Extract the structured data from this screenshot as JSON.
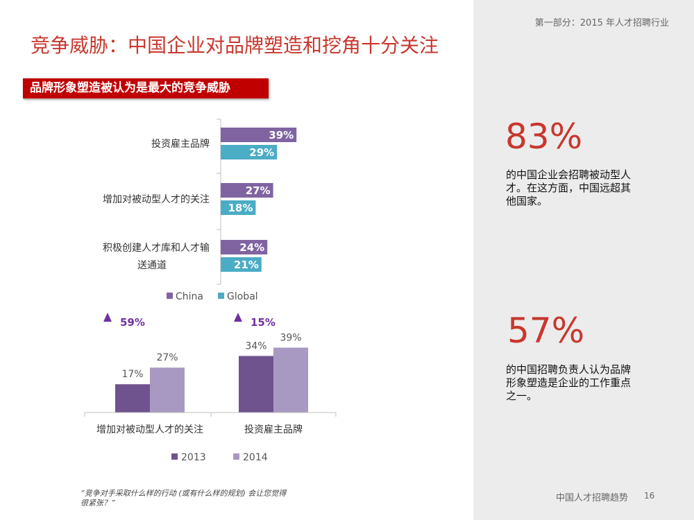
{
  "header": {
    "section_label": "第一部分：2015 年人才招聘行业",
    "title": "竞争威胁：中国企业对品牌塑造和挖角十分关注",
    "subtitle": "品牌形象塑造被认为是最大的竞争威胁"
  },
  "colors": {
    "title_red": "#c8372d",
    "subtitle_bg": "#c00000",
    "china_purple": "#8064a2",
    "global_teal": "#4bacc6",
    "y2013": "#6f538f",
    "y2014": "#a899c2",
    "increase_purple": "#7030a0"
  },
  "chart_data": [
    {
      "type": "bar",
      "orientation": "horizontal",
      "categories": [
        "投资雇主品牌",
        "增加对被动型人才的关注",
        "积极创建人才库和人才输送通道"
      ],
      "category_lines": [
        [
          "投资雇主品牌"
        ],
        [
          "增加对被动型人才的关注"
        ],
        [
          "积极创建人才库和人才输",
          "送通道"
        ]
      ],
      "series": [
        {
          "name": "China",
          "values": [
            39,
            27,
            24
          ],
          "labels": [
            "39%",
            "27%",
            "24%"
          ]
        },
        {
          "name": "Global",
          "values": [
            29,
            18,
            21
          ],
          "labels": [
            "29%",
            "18%",
            "21%"
          ]
        }
      ],
      "unit": "%",
      "legend": "bottom"
    },
    {
      "type": "bar",
      "categories": [
        "增加对被动型人才的关注",
        "投资雇主品牌"
      ],
      "series": [
        {
          "name": "2013",
          "values": [
            17,
            34
          ],
          "labels": [
            "17%",
            "34%"
          ]
        },
        {
          "name": "2014",
          "values": [
            27,
            39
          ],
          "labels": [
            "27%",
            "39%"
          ]
        }
      ],
      "annotations": [
        "59%",
        "15%"
      ],
      "unit": "%",
      "legend": "bottom"
    }
  ],
  "stats": [
    {
      "value": "83%",
      "description": "的中国企业会招聘被动型人才。在这方面，中国远超其他国家。"
    },
    {
      "value": "57%",
      "description": "的中国招聘负责人认为品牌形象塑造是企业的工作重点之一。"
    }
  ],
  "quote": "“竞争对手采取什么样的行动 (或有什么样的规划) 会让您觉得很紧张？”",
  "footer": {
    "text": "中国人才招聘趋势",
    "page": "16"
  }
}
